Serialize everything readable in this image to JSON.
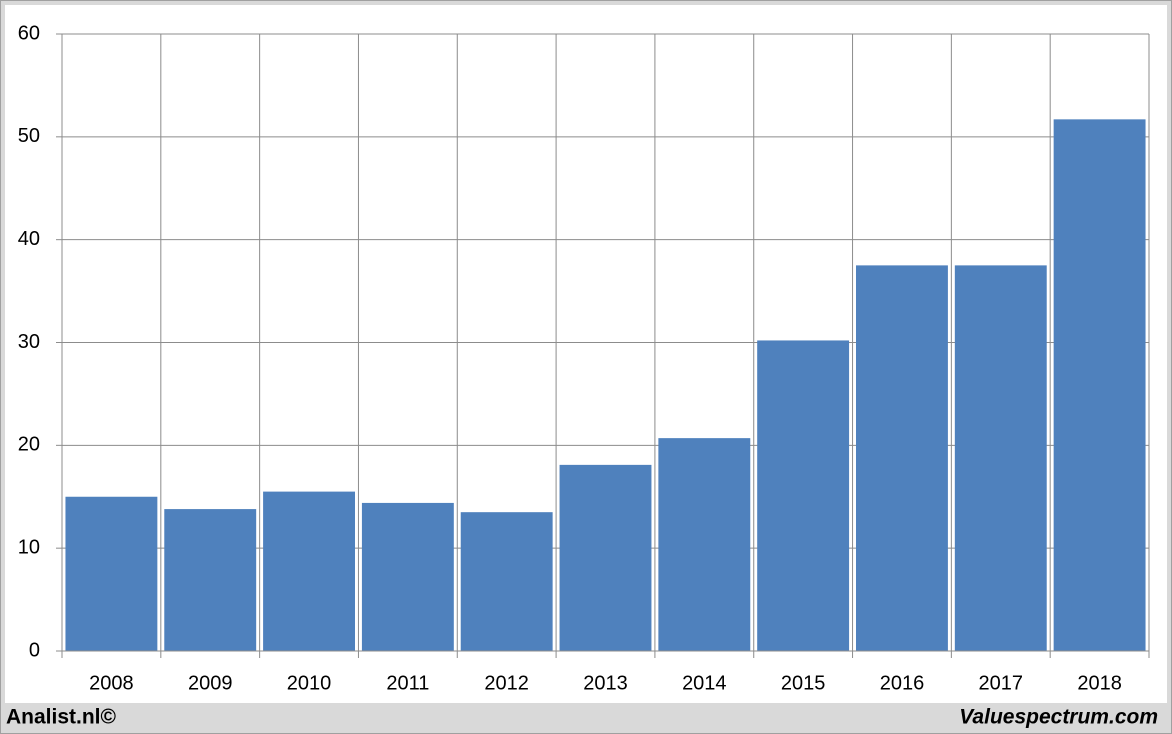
{
  "chart_data": {
    "type": "bar",
    "categories": [
      "2008",
      "2009",
      "2010",
      "2011",
      "2012",
      "2013",
      "2014",
      "2015",
      "2016",
      "2017",
      "2018"
    ],
    "values": [
      15.0,
      13.8,
      15.5,
      14.4,
      13.5,
      18.1,
      20.7,
      30.2,
      37.5,
      37.5,
      51.7
    ],
    "color": "#4f81bd",
    "ylim": [
      0,
      60
    ],
    "yticks": [
      0,
      10,
      20,
      30,
      40,
      50,
      60
    ],
    "grid": true,
    "credits": [
      "Analist.nl©",
      "Valuespectrum.com"
    ]
  }
}
